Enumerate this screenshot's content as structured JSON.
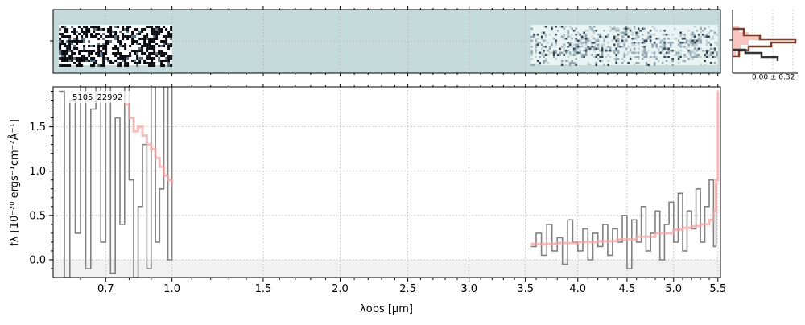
{
  "chart_data": {
    "type": "line",
    "object_label": "5105_22992",
    "xlabel": "λobs [μm]",
    "ylabel": "fλ [10⁻²⁰ ergs⁻¹cm⁻²Å⁻¹]",
    "xlim": [
      0.5,
      5.53
    ],
    "ylim": [
      -0.2,
      1.95
    ],
    "x_axis": "sqrt-scaled wavelength",
    "grid": true,
    "x_ticks": [
      0.7,
      1.0,
      1.5,
      2.0,
      2.5,
      3.0,
      3.5,
      4.0,
      4.5,
      5.0,
      5.5
    ],
    "x_tick_labels": [
      "0.7",
      "1.0",
      "1.5",
      "2.0",
      "2.5",
      "3.0",
      "3.5",
      "4.0",
      "4.5",
      "5.0",
      "5.5"
    ],
    "y_ticks": [
      0.0,
      0.5,
      1.0,
      1.5
    ],
    "y_tick_labels": [
      "0.0",
      "0.5",
      "1.0",
      "1.5"
    ],
    "series": [
      {
        "role": "spectrum",
        "color": "#808080",
        "segments": [
          {
            "x": [
              0.52,
              0.54,
              0.56,
              0.58,
              0.6,
              0.62,
              0.64,
              0.66,
              0.68,
              0.7,
              0.72,
              0.74,
              0.76,
              0.78,
              0.8,
              0.82,
              0.84,
              0.86,
              0.88,
              0.9,
              0.92,
              0.94,
              0.96,
              0.98,
              1.0
            ],
            "y": [
              1.9,
              -0.2,
              1.8,
              0.3,
              1.95,
              -0.1,
              1.7,
              1.95,
              0.2,
              1.95,
              -0.15,
              1.6,
              0.4,
              1.95,
              0.9,
              -0.2,
              0.6,
              1.3,
              -0.1,
              1.95,
              0.2,
              0.8,
              1.95,
              0.0,
              1.95
            ]
          },
          {
            "x": [
              3.55,
              3.6,
              3.65,
              3.7,
              3.75,
              3.8,
              3.85,
              3.9,
              3.95,
              4.0,
              4.05,
              4.1,
              4.15,
              4.2,
              4.25,
              4.3,
              4.35,
              4.4,
              4.45,
              4.5,
              4.55,
              4.6,
              4.65,
              4.7,
              4.75,
              4.8,
              4.85,
              4.9,
              4.95,
              5.0,
              5.05,
              5.1,
              5.15,
              5.2,
              5.25,
              5.3,
              5.35,
              5.4,
              5.45,
              5.48
            ],
            "y": [
              0.15,
              0.3,
              0.05,
              0.4,
              0.1,
              0.25,
              -0.05,
              0.45,
              0.2,
              0.1,
              0.35,
              0.0,
              0.3,
              0.15,
              0.4,
              0.05,
              0.35,
              0.2,
              0.5,
              -0.1,
              0.45,
              0.2,
              0.6,
              0.1,
              0.3,
              0.55,
              0.0,
              0.4,
              0.65,
              0.2,
              0.75,
              0.1,
              0.55,
              0.35,
              0.8,
              0.2,
              0.6,
              0.9,
              0.15,
              0.85
            ]
          }
        ]
      },
      {
        "role": "model",
        "color": "#f4a6a6",
        "segments": [
          {
            "x": [
              0.78,
              0.8,
              0.82,
              0.84,
              0.86,
              0.88,
              0.9,
              0.92,
              0.94,
              0.96,
              0.98,
              1.0
            ],
            "y": [
              1.75,
              1.6,
              1.45,
              1.5,
              1.4,
              1.3,
              1.25,
              1.15,
              1.05,
              0.95,
              0.9,
              0.85
            ]
          },
          {
            "x": [
              3.55,
              3.8,
              4.0,
              4.2,
              4.4,
              4.6,
              4.8,
              5.0,
              5.1,
              5.2,
              5.3,
              5.4,
              5.45,
              5.48,
              5.5
            ],
            "y": [
              0.18,
              0.19,
              0.2,
              0.21,
              0.23,
              0.26,
              0.3,
              0.34,
              0.36,
              0.38,
              0.4,
              0.45,
              0.55,
              0.9,
              1.9
            ]
          }
        ]
      }
    ]
  },
  "image_panel": {
    "segments": [
      [
        0.52,
        1.0
      ],
      [
        3.55,
        5.5
      ]
    ]
  },
  "histogram_panel": {
    "annotation": "0.00 ± 0.32"
  }
}
